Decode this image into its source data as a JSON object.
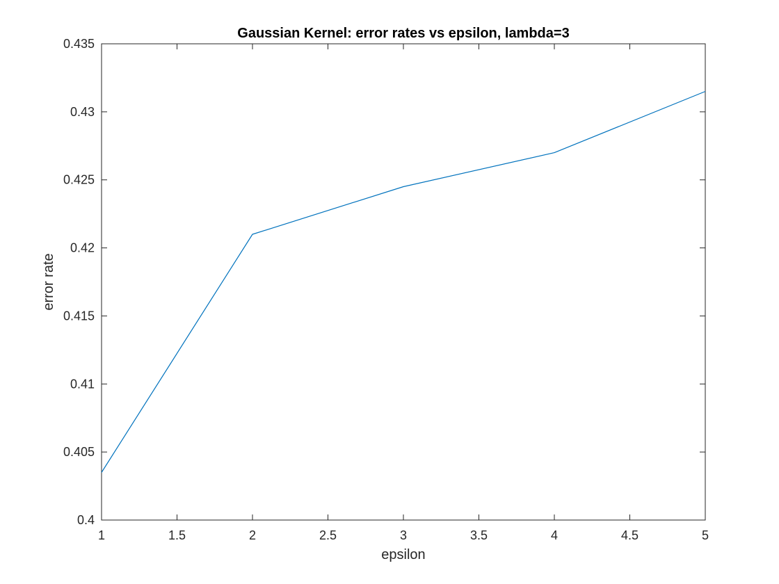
{
  "chart_data": {
    "type": "line",
    "title": "Gaussian Kernel: error rates vs epsilon, lambda=3",
    "xlabel": "epsilon",
    "ylabel": "error rate",
    "xlim": [
      1,
      5
    ],
    "ylim": [
      0.4,
      0.435
    ],
    "xticks": [
      1,
      1.5,
      2,
      2.5,
      3,
      3.5,
      4,
      4.5,
      5
    ],
    "xtick_labels": [
      "1",
      "1.5",
      "2",
      "2.5",
      "3",
      "3.5",
      "4",
      "4.5",
      "5"
    ],
    "yticks": [
      0.4,
      0.405,
      0.41,
      0.415,
      0.42,
      0.425,
      0.43,
      0.435
    ],
    "ytick_labels": [
      "0.4",
      "0.405",
      "0.41",
      "0.415",
      "0.42",
      "0.425",
      "0.43",
      "0.435"
    ],
    "grid": false,
    "legend": "none",
    "x": [
      1,
      2,
      3,
      4,
      5
    ],
    "series": [
      {
        "values": [
          0.4035,
          0.421,
          0.4245,
          0.427,
          0.4315
        ],
        "color": "#0072BD"
      }
    ]
  }
}
